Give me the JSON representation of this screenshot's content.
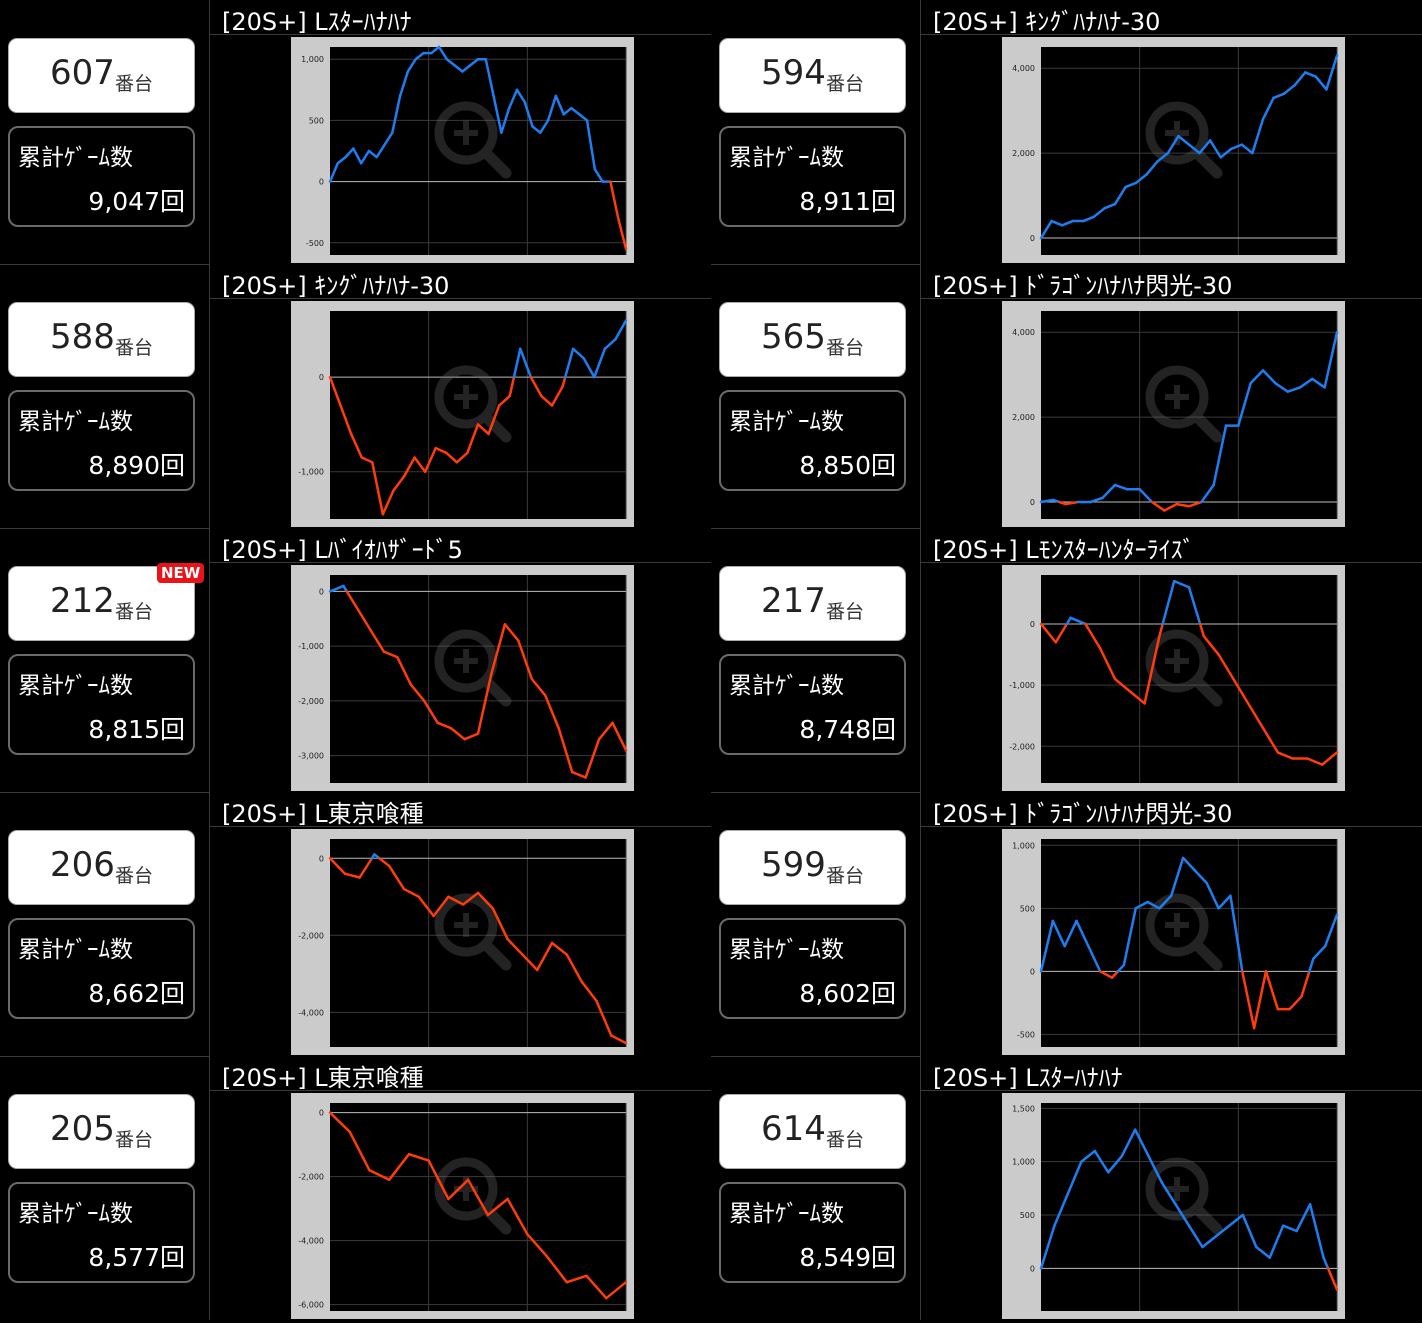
{
  "colors": {
    "up": "#1e7ef0",
    "down": "#ff3c0a",
    "frame": "#cbcbcb",
    "plot": "#000000",
    "grid": "#3b3b3b",
    "zero": "#bbbbbb"
  },
  "badges": {
    "new": "NEW"
  },
  "labels": {
    "machine_suffix": "番台",
    "games_label": "累計ｹﾞｰﾑ数",
    "games_suffix": "回"
  },
  "machines": [
    {
      "number": "607",
      "games": "9,047回",
      "title": "[20S+] Lｽﾀｰﾊﾅﾊﾅ",
      "chart_data": {
        "type": "line",
        "yticks": [
          "1,000",
          "500",
          "0",
          "-500"
        ],
        "ytick_values": [
          1000,
          500,
          0,
          -500
        ],
        "ylim": [
          -600,
          1100
        ],
        "values": [
          0,
          150,
          200,
          270,
          150,
          250,
          200,
          300,
          400,
          700,
          900,
          1000,
          1050,
          1050,
          1100,
          1000,
          950,
          900,
          950,
          1000,
          1000,
          700,
          400,
          600,
          750,
          650,
          450,
          400,
          500,
          700,
          550,
          600,
          550,
          500,
          100,
          0,
          0,
          -300,
          -550
        ]
      }
    },
    {
      "number": "594",
      "games": "8,911回",
      "title": "[20S+] ｷﾝｸﾞﾊﾅﾊﾅ-30",
      "chart_data": {
        "type": "line",
        "yticks": [
          "4,000",
          "2,000",
          "0"
        ],
        "ytick_values": [
          4000,
          2000,
          0
        ],
        "ylim": [
          -400,
          4500
        ],
        "values": [
          0,
          400,
          300,
          400,
          400,
          500,
          700,
          800,
          1200,
          1300,
          1500,
          1800,
          2000,
          2400,
          2200,
          2000,
          2300,
          1900,
          2100,
          2200,
          2000,
          2800,
          3300,
          3400,
          3600,
          3900,
          3800,
          3500,
          4300
        ]
      }
    },
    {
      "number": "588",
      "games": "8,890回",
      "title": "[20S+] ｷﾝｸﾞﾊﾅﾊﾅ-30",
      "chart_data": {
        "type": "line",
        "yticks": [
          "0",
          "-1,000"
        ],
        "ytick_values": [
          0,
          -1000
        ],
        "ylim": [
          -1500,
          700
        ],
        "values": [
          0,
          -300,
          -600,
          -850,
          -900,
          -1450,
          -1200,
          -1050,
          -850,
          -1000,
          -750,
          -800,
          -900,
          -800,
          -500,
          -600,
          -300,
          -200,
          300,
          0,
          -200,
          -300,
          -100,
          300,
          200,
          0,
          300,
          400,
          600
        ]
      }
    },
    {
      "number": "565",
      "games": "8,850回",
      "title": "[20S+] ﾄﾞﾗｺﾞﾝﾊﾅﾊﾅ閃光-30",
      "chart_data": {
        "type": "line",
        "yticks": [
          "4,000",
          "2,000",
          "0"
        ],
        "ytick_values": [
          4000,
          2000,
          0
        ],
        "ylim": [
          -400,
          4500
        ],
        "values": [
          0,
          50,
          -50,
          0,
          0,
          100,
          400,
          300,
          300,
          0,
          -200,
          -50,
          -100,
          0,
          400,
          1800,
          1800,
          2800,
          3100,
          2800,
          2600,
          2700,
          2900,
          2700,
          4000
        ]
      }
    },
    {
      "number": "212",
      "games": "8,815回",
      "new": true,
      "title": "[20S+] Lﾊﾞｲｵﾊｻﾞｰﾄﾞ5",
      "chart_data": {
        "type": "line",
        "yticks": [
          "0",
          "-1,000",
          "-2,000",
          "-3,000"
        ],
        "ytick_values": [
          0,
          -1000,
          -2000,
          -3000
        ],
        "ylim": [
          -3500,
          300
        ],
        "values": [
          0,
          100,
          -300,
          -700,
          -1100,
          -1200,
          -1700,
          -2000,
          -2400,
          -2500,
          -2700,
          -2600,
          -1500,
          -600,
          -900,
          -1600,
          -1900,
          -2500,
          -3300,
          -3400,
          -2700,
          -2400,
          -2900
        ]
      }
    },
    {
      "number": "217",
      "games": "8,748回",
      "title": "[20S+] Lﾓﾝｽﾀｰﾊﾝﾀｰﾗｲｽﾞ",
      "chart_data": {
        "type": "line",
        "yticks": [
          "0",
          "-1,000",
          "-2,000"
        ],
        "ytick_values": [
          0,
          -1000,
          -2000
        ],
        "ylim": [
          -2600,
          800
        ],
        "values": [
          0,
          -300,
          100,
          0,
          -400,
          -900,
          -1100,
          -1300,
          -200,
          700,
          600,
          -200,
          -500,
          -900,
          -1300,
          -1700,
          -2100,
          -2200,
          -2200,
          -2300,
          -2100
        ]
      }
    },
    {
      "number": "206",
      "games": "8,662回",
      "title": "[20S+] L東京喰種",
      "chart_data": {
        "type": "line",
        "yticks": [
          "0",
          "-2,000",
          "-4,000"
        ],
        "ytick_values": [
          0,
          -2000,
          -4000
        ],
        "ylim": [
          -4900,
          500
        ],
        "values": [
          0,
          -400,
          -500,
          100,
          -200,
          -800,
          -1000,
          -1500,
          -1000,
          -1200,
          -900,
          -1300,
          -2100,
          -2500,
          -2900,
          -2200,
          -2500,
          -3200,
          -3700,
          -4600,
          -4800
        ]
      }
    },
    {
      "number": "599",
      "games": "8,602回",
      "title": "[20S+] ﾄﾞﾗｺﾞﾝﾊﾅﾊﾅ閃光-30",
      "chart_data": {
        "type": "line",
        "yticks": [
          "1,000",
          "500",
          "0",
          "-500"
        ],
        "ytick_values": [
          1000,
          500,
          0,
          -500
        ],
        "ylim": [
          -600,
          1050
        ],
        "values": [
          0,
          400,
          200,
          400,
          200,
          0,
          -50,
          50,
          500,
          550,
          500,
          600,
          900,
          800,
          700,
          500,
          600,
          0,
          -450,
          0,
          -300,
          -300,
          -200,
          100,
          200,
          450
        ]
      }
    },
    {
      "number": "205",
      "games": "8,577回",
      "title": "[20S+] L東京喰種",
      "chart_data": {
        "type": "line",
        "yticks": [
          "0",
          "-2,000",
          "-4,000",
          "-6,000"
        ],
        "ytick_values": [
          0,
          -2000,
          -4000,
          -6000
        ],
        "ylim": [
          -6200,
          300
        ],
        "values": [
          0,
          -600,
          -1800,
          -2100,
          -1300,
          -1500,
          -2700,
          -2100,
          -3200,
          -2700,
          -3800,
          -4500,
          -5300,
          -5100,
          -5800,
          -5300
        ]
      }
    },
    {
      "number": "614",
      "games": "8,549回",
      "title": "[20S+] Lｽﾀｰﾊﾅﾊﾅ",
      "chart_data": {
        "type": "line",
        "yticks": [
          "1,500",
          "1,000",
          "500",
          "0"
        ],
        "ytick_values": [
          1500,
          1000,
          500,
          0
        ],
        "ylim": [
          -400,
          1550
        ],
        "values": [
          0,
          400,
          700,
          1000,
          1100,
          900,
          1050,
          1300,
          1050,
          800,
          600,
          400,
          200,
          300,
          400,
          500,
          200,
          100,
          400,
          350,
          600,
          100,
          -200
        ]
      }
    }
  ]
}
